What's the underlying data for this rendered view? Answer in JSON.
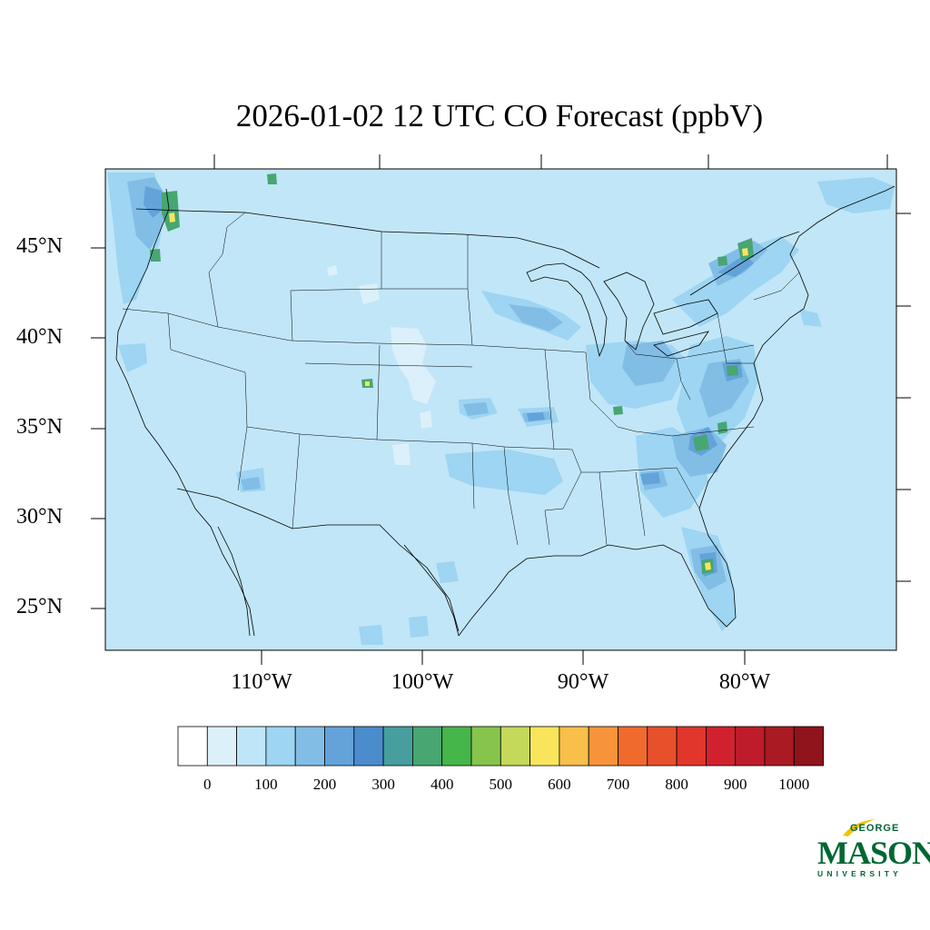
{
  "title": "2026-01-02 12 UTC CO Forecast (ppbV)",
  "latitude_labels": [
    "45°N",
    "40°N",
    "35°N",
    "30°N",
    "25°N"
  ],
  "longitude_labels": [
    "110°W",
    "100°W",
    "90°W",
    "80°W"
  ],
  "colorbar": {
    "labels": [
      "0",
      "100",
      "200",
      "300",
      "400",
      "500",
      "600",
      "700",
      "800",
      "900",
      "1000"
    ],
    "colors": [
      "#ffffff",
      "#dcf0fa",
      "#bfe6f8",
      "#9dd5f2",
      "#82bde6",
      "#63a3da",
      "#4a8ccc",
      "#469e9f",
      "#47a672",
      "#45b649",
      "#86c44c",
      "#c4d85a",
      "#f8e55c",
      "#f8bf4b",
      "#f7943b",
      "#f06a2d",
      "#e8502c",
      "#e0362b",
      "#d1212e",
      "#be1c2a",
      "#aa1a22",
      "#8f141b"
    ]
  },
  "map_colors": {
    "background": "#c1e6f8",
    "light": "#dbf0fa",
    "moderate": "#9dd5f2",
    "elevated": "#82bde6",
    "high": "#63a3da",
    "green": "#47a672",
    "yellow": "#f8e55c"
  },
  "logo": {
    "top": "GEORGE",
    "main": "MASON",
    "bottom": "UNIVERSITY"
  }
}
